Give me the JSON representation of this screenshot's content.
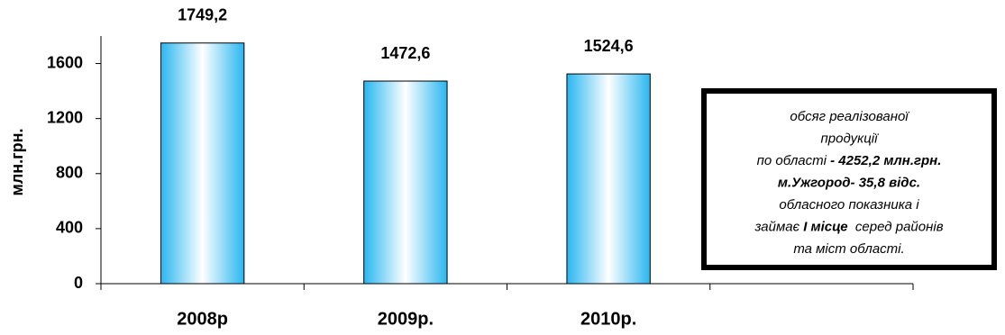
{
  "chart_data": {
    "type": "bar",
    "y_label": "млн.грн.",
    "categories": [
      "2008р",
      "2009р.",
      "2010р.",
      null
    ],
    "values": [
      1749.2,
      1472.6,
      1524.6,
      null
    ],
    "value_labels": [
      "1749,2",
      "1472,6",
      "1524,6",
      null
    ],
    "ylim": [
      0,
      1800
    ],
    "yticks": [
      0,
      400,
      800,
      1200,
      1600
    ],
    "color": "#29b6f0",
    "annotation": {
      "lines": [
        [
          {
            "text": "обсяг реалізованої",
            "bold": false
          }
        ],
        [
          {
            "text": "продукції",
            "bold": false
          }
        ],
        [
          {
            "text": "по області",
            "bold": false
          },
          {
            "text": " - 4252,2 млн.грн.",
            "bold": true
          }
        ],
        [
          {
            "text": "м.Ужгород- 35,8 відс.",
            "bold": true
          }
        ],
        [
          {
            "text": "обласного показника і",
            "bold": false
          }
        ],
        [
          {
            "text": "займає ",
            "bold": false
          },
          {
            "text": "І місце",
            "bold": true
          },
          {
            "text": "  серед районів",
            "bold": false
          }
        ],
        [
          {
            "text": "та міст області.",
            "bold": false
          }
        ]
      ]
    }
  }
}
